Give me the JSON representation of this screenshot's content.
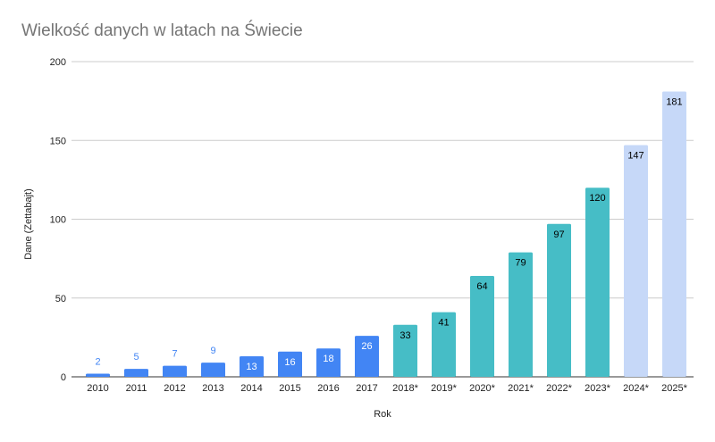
{
  "chart_data": {
    "type": "bar",
    "title": "Wielkość danych w latach na Świecie",
    "xlabel": "Rok",
    "ylabel": "Dane (Zettabajt)",
    "ylim": [
      0,
      200
    ],
    "yticks": [
      "0",
      "50",
      "100",
      "150",
      "200"
    ],
    "grid": true,
    "categories": [
      "2010",
      "2011",
      "2012",
      "2013",
      "2014",
      "2015",
      "2016",
      "2017",
      "2018*",
      "2019*",
      "2020*",
      "2021*",
      "2022*",
      "2023*",
      "2024*",
      "2025*"
    ],
    "values": [
      2,
      5,
      7,
      9,
      13,
      16,
      18,
      26,
      33,
      41,
      64,
      79,
      97,
      120,
      147,
      181
    ],
    "data_labels": [
      "2",
      "5",
      "7",
      "9",
      "13",
      "16",
      "18",
      "26",
      "33",
      "41",
      "64",
      "79",
      "97",
      "120",
      "147",
      "181"
    ],
    "bar_colors": [
      "#4285f4",
      "#4285f4",
      "#4285f4",
      "#4285f4",
      "#4285f4",
      "#4285f4",
      "#4285f4",
      "#4285f4",
      "#46bdc6",
      "#46bdc6",
      "#46bdc6",
      "#46bdc6",
      "#46bdc6",
      "#46bdc6",
      "#c6d8f8",
      "#c6d8f8"
    ],
    "label_colors": [
      "#4285f4",
      "#4285f4",
      "#4285f4",
      "#4285f4",
      "#ffffff",
      "#ffffff",
      "#ffffff",
      "#ffffff",
      "#000000",
      "#000000",
      "#000000",
      "#000000",
      "#000000",
      "#000000",
      "#000000",
      "#000000"
    ],
    "label_positions": [
      "outside",
      "outside",
      "outside",
      "outside",
      "inside",
      "inside",
      "inside",
      "inside",
      "inside",
      "inside",
      "inside",
      "inside",
      "inside",
      "inside",
      "inside",
      "inside"
    ],
    "grid_color": "#cccccc",
    "axis_color": "#333333"
  }
}
